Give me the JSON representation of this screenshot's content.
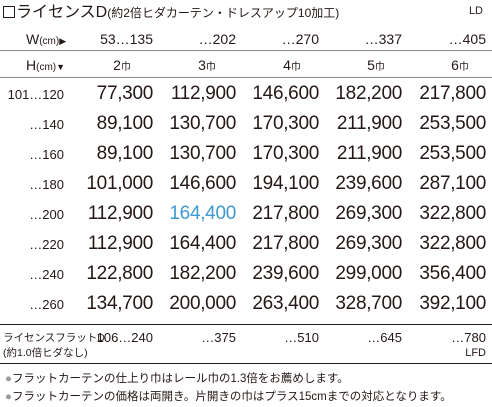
{
  "title": {
    "main": "ライセンスD",
    "sub": "(約2倍ヒダカーテン・ドレスアップ10加工)",
    "code": "LD"
  },
  "width_header": {
    "label": "W",
    "unit": "(cm)",
    "arrow": "▶",
    "values": [
      "53…135",
      "…202",
      "…270",
      "…337",
      "…405"
    ]
  },
  "height_header": {
    "label": "H",
    "unit": "(cm)",
    "arrow": "▼",
    "panels": [
      {
        "num": "2",
        "unit": "巾"
      },
      {
        "num": "3",
        "unit": "巾"
      },
      {
        "num": "4",
        "unit": "巾"
      },
      {
        "num": "5",
        "unit": "巾"
      },
      {
        "num": "6",
        "unit": "巾"
      }
    ]
  },
  "rows": [
    {
      "label": "101…120",
      "prices": [
        "77,300",
        "112,900",
        "146,600",
        "182,200",
        "217,800"
      ]
    },
    {
      "label": "…140",
      "prices": [
        "89,100",
        "130,700",
        "170,300",
        "211,900",
        "253,500"
      ]
    },
    {
      "label": "…160",
      "prices": [
        "89,100",
        "130,700",
        "170,300",
        "211,900",
        "253,500"
      ]
    },
    {
      "label": "…180",
      "prices": [
        "101,000",
        "146,600",
        "194,100",
        "239,600",
        "287,100"
      ]
    },
    {
      "label": "…200",
      "prices": [
        "112,900",
        "164,400",
        "217,800",
        "269,300",
        "322,800"
      ]
    },
    {
      "label": "…220",
      "prices": [
        "112,900",
        "164,400",
        "217,800",
        "269,300",
        "322,800"
      ]
    },
    {
      "label": "…240",
      "prices": [
        "122,800",
        "182,200",
        "239,600",
        "299,000",
        "356,400"
      ]
    },
    {
      "label": "…260",
      "prices": [
        "134,700",
        "200,000",
        "263,400",
        "328,700",
        "392,100"
      ]
    }
  ],
  "highlight": {
    "row": 4,
    "col": 1,
    "color": "#3d9ad1"
  },
  "flat": {
    "label_line1": "ライセンスフラットD",
    "label_line2": "(約1.0倍ヒダなし)",
    "values": [
      "106…240",
      "…375",
      "…510",
      "…645",
      "…780"
    ],
    "code": "LFD"
  },
  "notes": [
    "フラットカーテンの仕上り巾はレール巾の1.3倍をお薦めします。",
    "フラットカーテンの価格は両開き。片開きの巾はプラス15cmまでの対応となります。"
  ]
}
